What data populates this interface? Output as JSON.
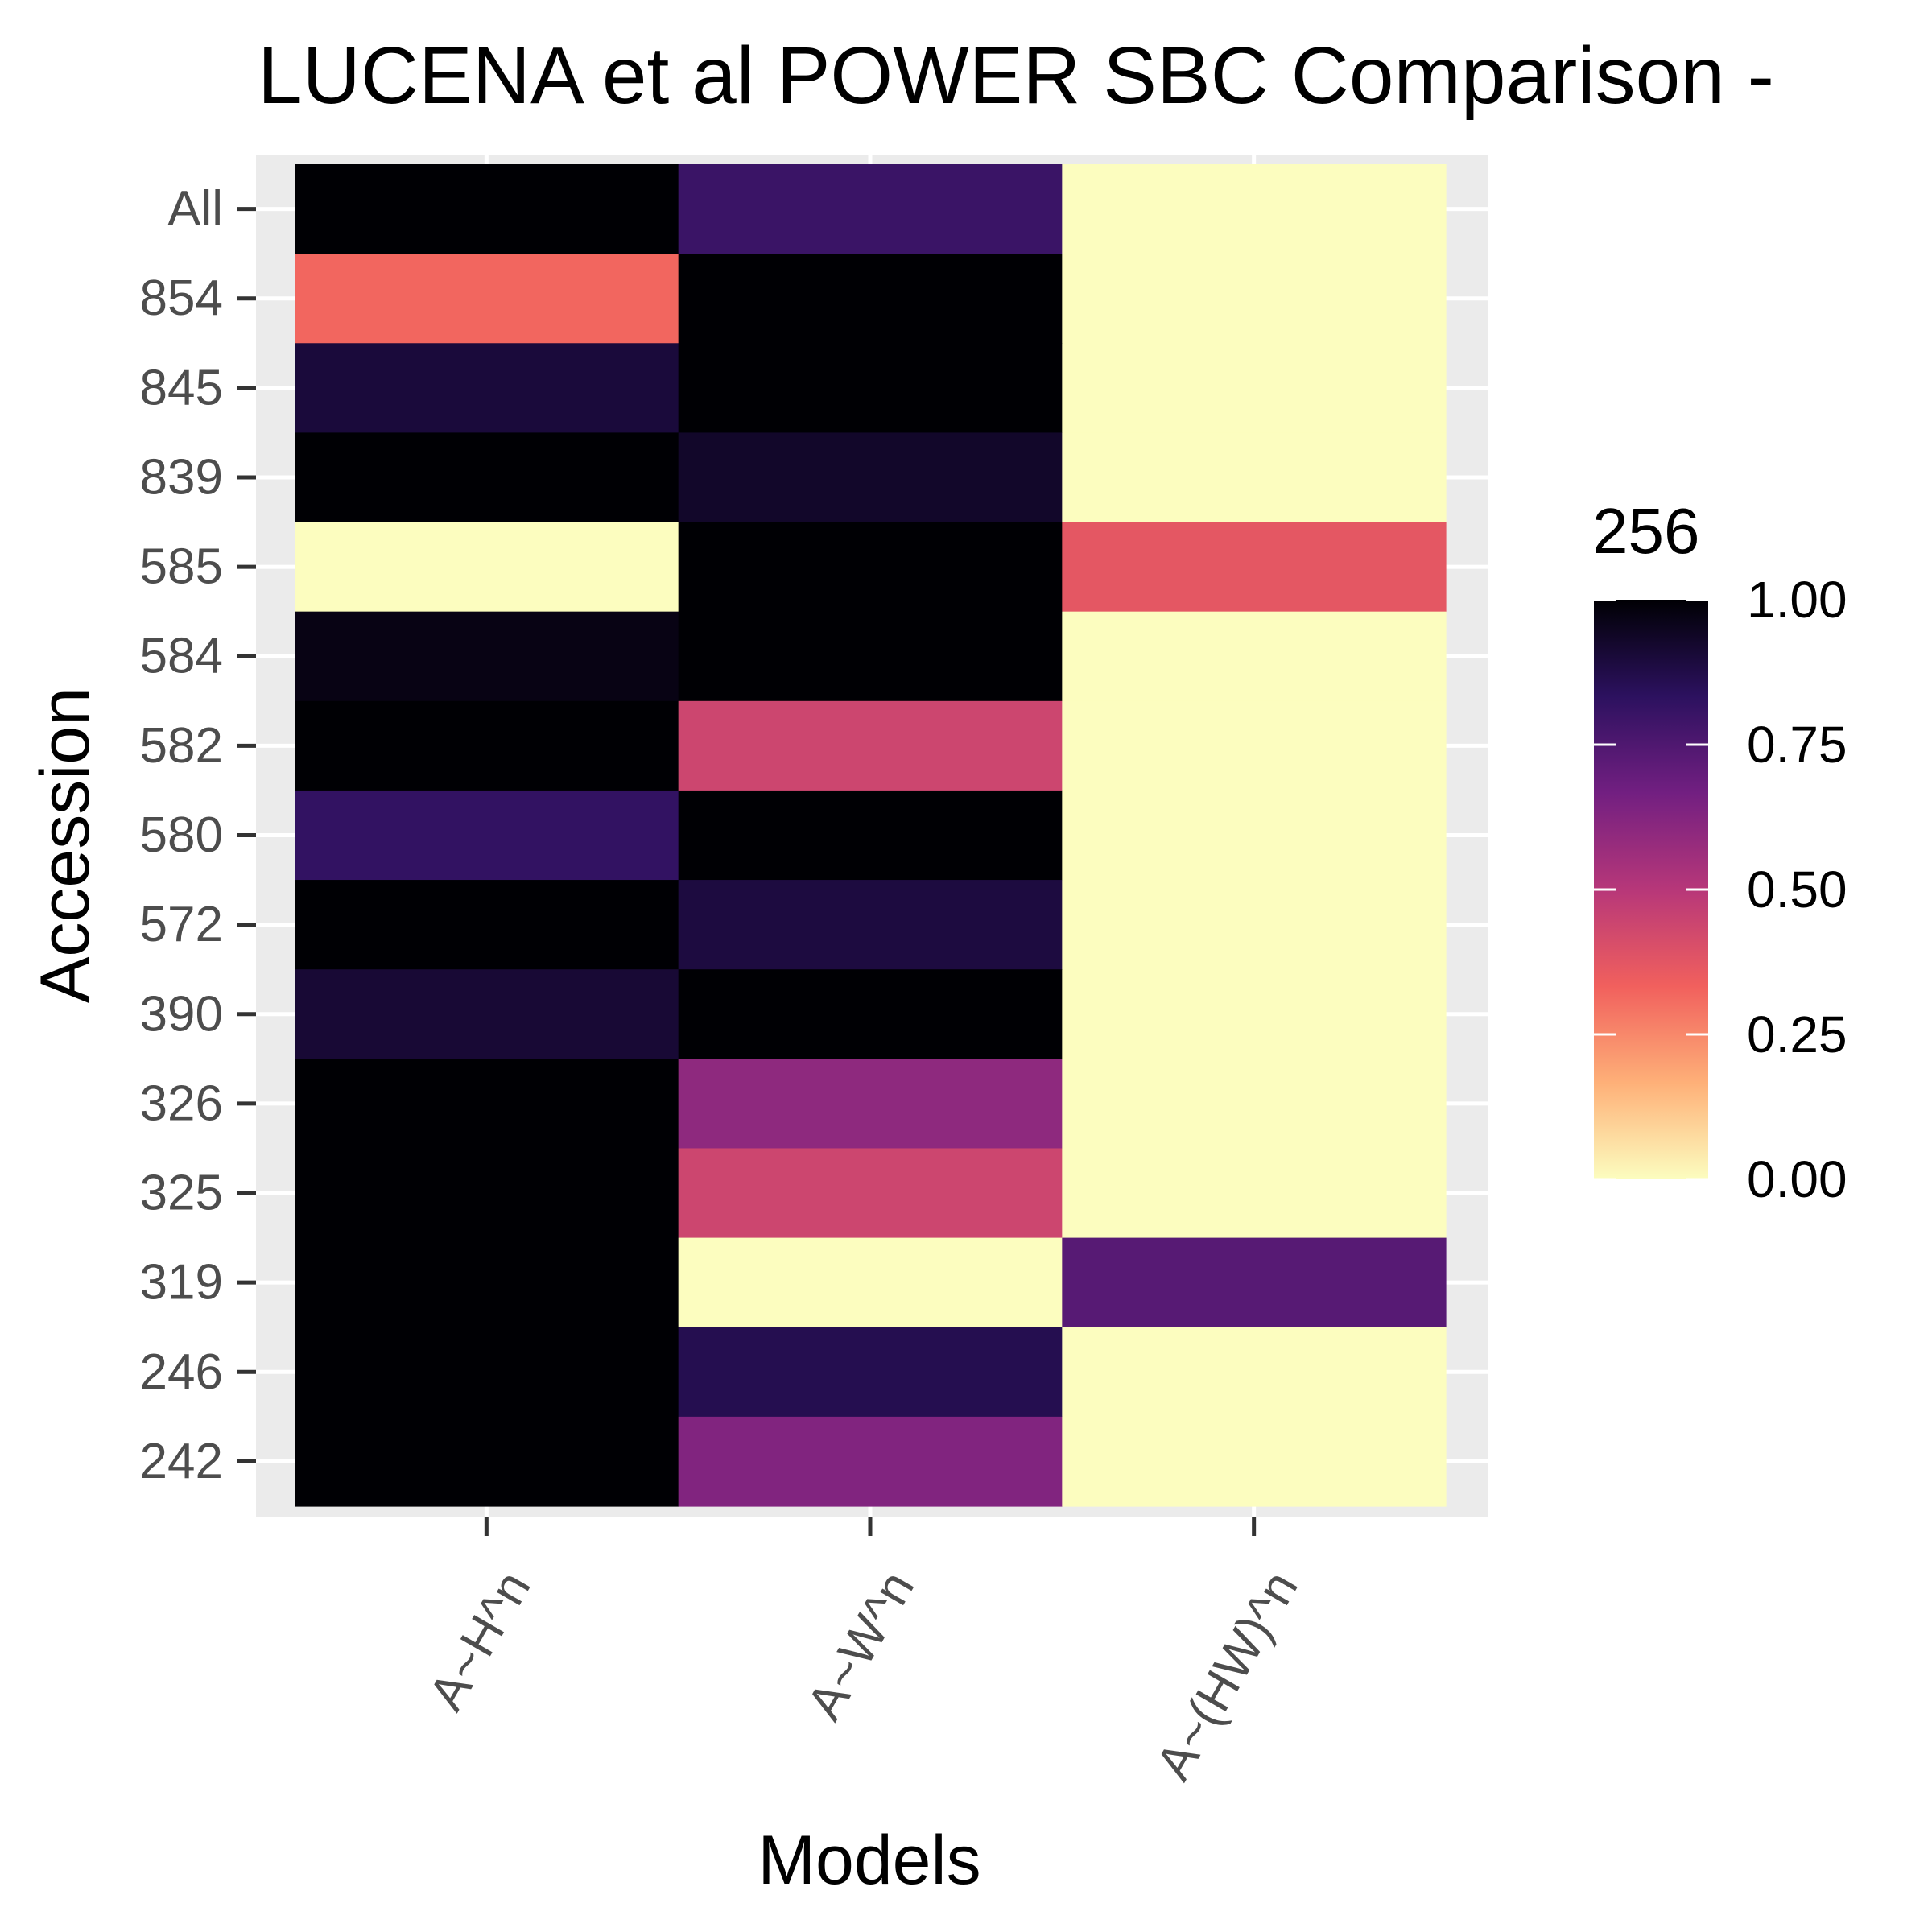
{
  "chart_data": {
    "type": "heatmap",
    "title": "LUCENA et al POWER SBC Comparison -",
    "xlabel": "Models",
    "ylabel": "Accession",
    "x_categories": [
      "A~H^n",
      "A~W^n",
      "A~(HW)^n"
    ],
    "y_categories": [
      "All",
      "854",
      "845",
      "839",
      "585",
      "584",
      "582",
      "580",
      "572",
      "390",
      "326",
      "325",
      "319",
      "246",
      "242"
    ],
    "values": [
      [
        1.0,
        0.8,
        0.0
      ],
      [
        0.32,
        1.0,
        0.0
      ],
      [
        0.9,
        1.0,
        0.0
      ],
      [
        1.0,
        0.93,
        0.0
      ],
      [
        0.0,
        1.0,
        0.37
      ],
      [
        0.97,
        1.0,
        0.0
      ],
      [
        1.0,
        0.44,
        0.0
      ],
      [
        0.82,
        1.0,
        0.0
      ],
      [
        1.0,
        0.89,
        0.0
      ],
      [
        0.91,
        1.0,
        0.0
      ],
      [
        1.0,
        0.6,
        0.0
      ],
      [
        1.0,
        0.44,
        0.0
      ],
      [
        1.0,
        0.0,
        0.73
      ],
      [
        1.0,
        0.86,
        0.0
      ],
      [
        1.0,
        0.63,
        0.0
      ]
    ],
    "color_scale": {
      "title": "256",
      "name": "magma (reversed)",
      "min": 0,
      "max": 1,
      "breaks": [
        "0.00",
        "0.25",
        "0.50",
        "0.75",
        "1.00"
      ],
      "stops": [
        "#fcfdbf",
        "#feb078",
        "#f1605d",
        "#b73779",
        "#721f81",
        "#2c115f",
        "#000004"
      ]
    },
    "panel_background": "#ebebeb",
    "grid": true,
    "legend_position": "right"
  }
}
